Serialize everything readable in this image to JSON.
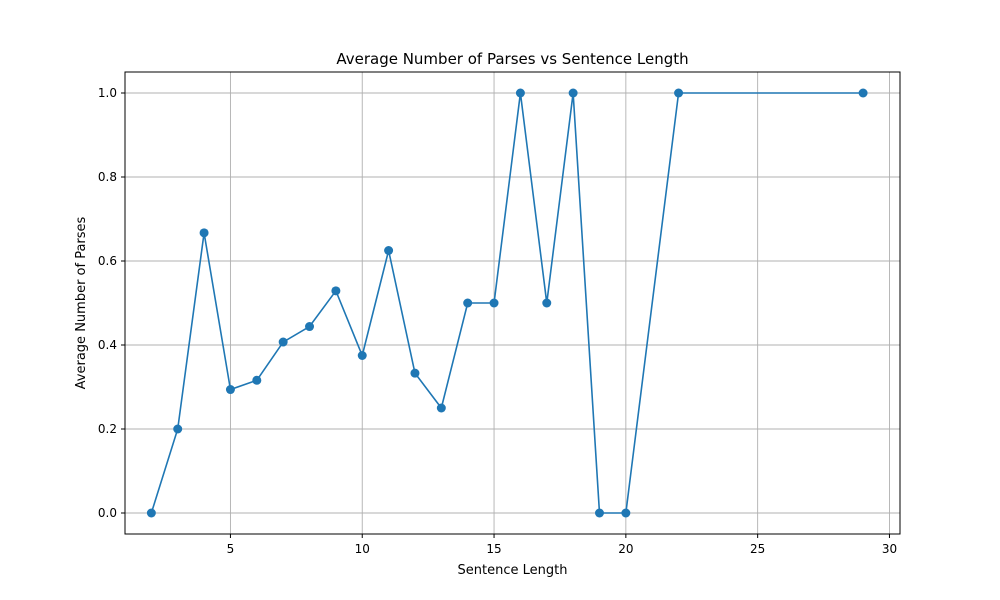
{
  "chart_data": {
    "type": "line",
    "title": "Average Number of Parses vs Sentence Length",
    "xlabel": "Sentence Length",
    "ylabel": "Average Number of Parses",
    "xlim": [
      1,
      30.4
    ],
    "ylim": [
      -0.05,
      1.05
    ],
    "xticks": [
      5,
      10,
      15,
      20,
      25,
      30
    ],
    "yticks": [
      0.0,
      0.2,
      0.4,
      0.6,
      0.8,
      1.0
    ],
    "xtick_labels": [
      "5",
      "10",
      "15",
      "20",
      "25",
      "30"
    ],
    "ytick_labels": [
      "0.0",
      "0.2",
      "0.4",
      "0.6",
      "0.8",
      "1.0"
    ],
    "grid": true,
    "marker": "circle",
    "series": [
      {
        "color": "#1f77b4",
        "x": [
          2,
          3,
          4,
          5,
          6,
          7,
          8,
          9,
          10,
          11,
          12,
          13,
          14,
          15,
          16,
          17,
          18,
          19,
          20,
          22,
          29
        ],
        "y": [
          0.0,
          0.2,
          0.667,
          0.294,
          0.316,
          0.407,
          0.444,
          0.529,
          0.375,
          0.625,
          0.333,
          0.25,
          0.5,
          0.5,
          1.0,
          0.5,
          1.0,
          0.0,
          0.0,
          1.0,
          1.0
        ]
      }
    ]
  }
}
